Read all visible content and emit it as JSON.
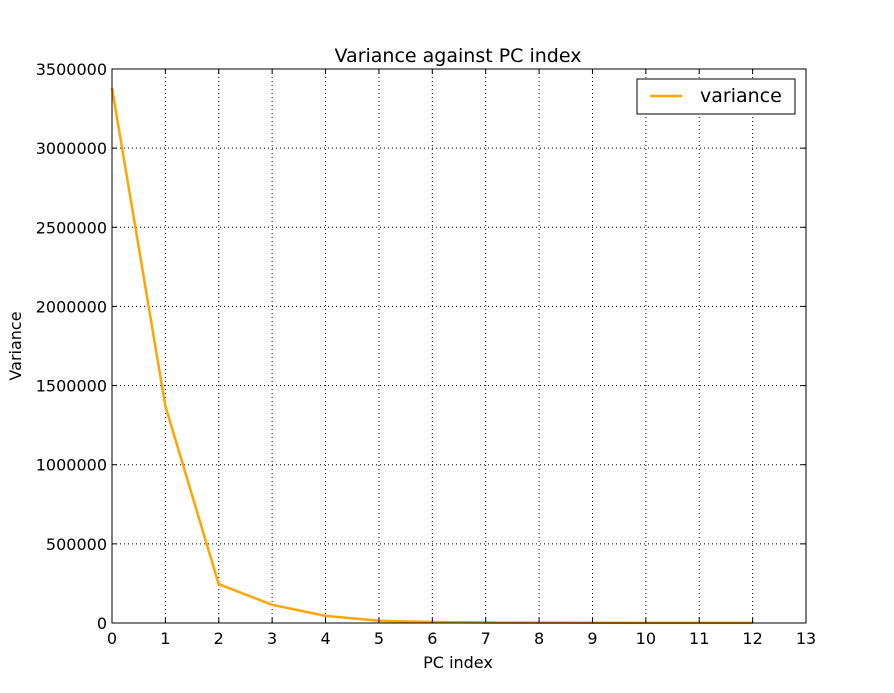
{
  "chart_data": {
    "type": "line",
    "title": "Variance against PC index",
    "xlabel": "PC index",
    "ylabel": "Variance",
    "xlim": [
      0,
      13
    ],
    "ylim": [
      0,
      3500000
    ],
    "xticks": [
      0,
      1,
      2,
      3,
      4,
      5,
      6,
      7,
      8,
      9,
      10,
      11,
      12,
      13
    ],
    "yticks": [
      0,
      500000,
      1000000,
      1500000,
      2000000,
      2500000,
      3000000,
      3500000
    ],
    "grid": true,
    "legend_position": "top-right",
    "series": [
      {
        "name": "variance",
        "color": "#ffa500",
        "x": [
          0,
          1,
          2,
          3,
          4,
          5,
          6,
          7,
          8,
          9,
          10,
          11,
          12
        ],
        "y": [
          3380000,
          1370000,
          245000,
          115000,
          45000,
          14000,
          6000,
          3000,
          2000,
          1500,
          1000,
          800,
          500
        ]
      }
    ]
  }
}
